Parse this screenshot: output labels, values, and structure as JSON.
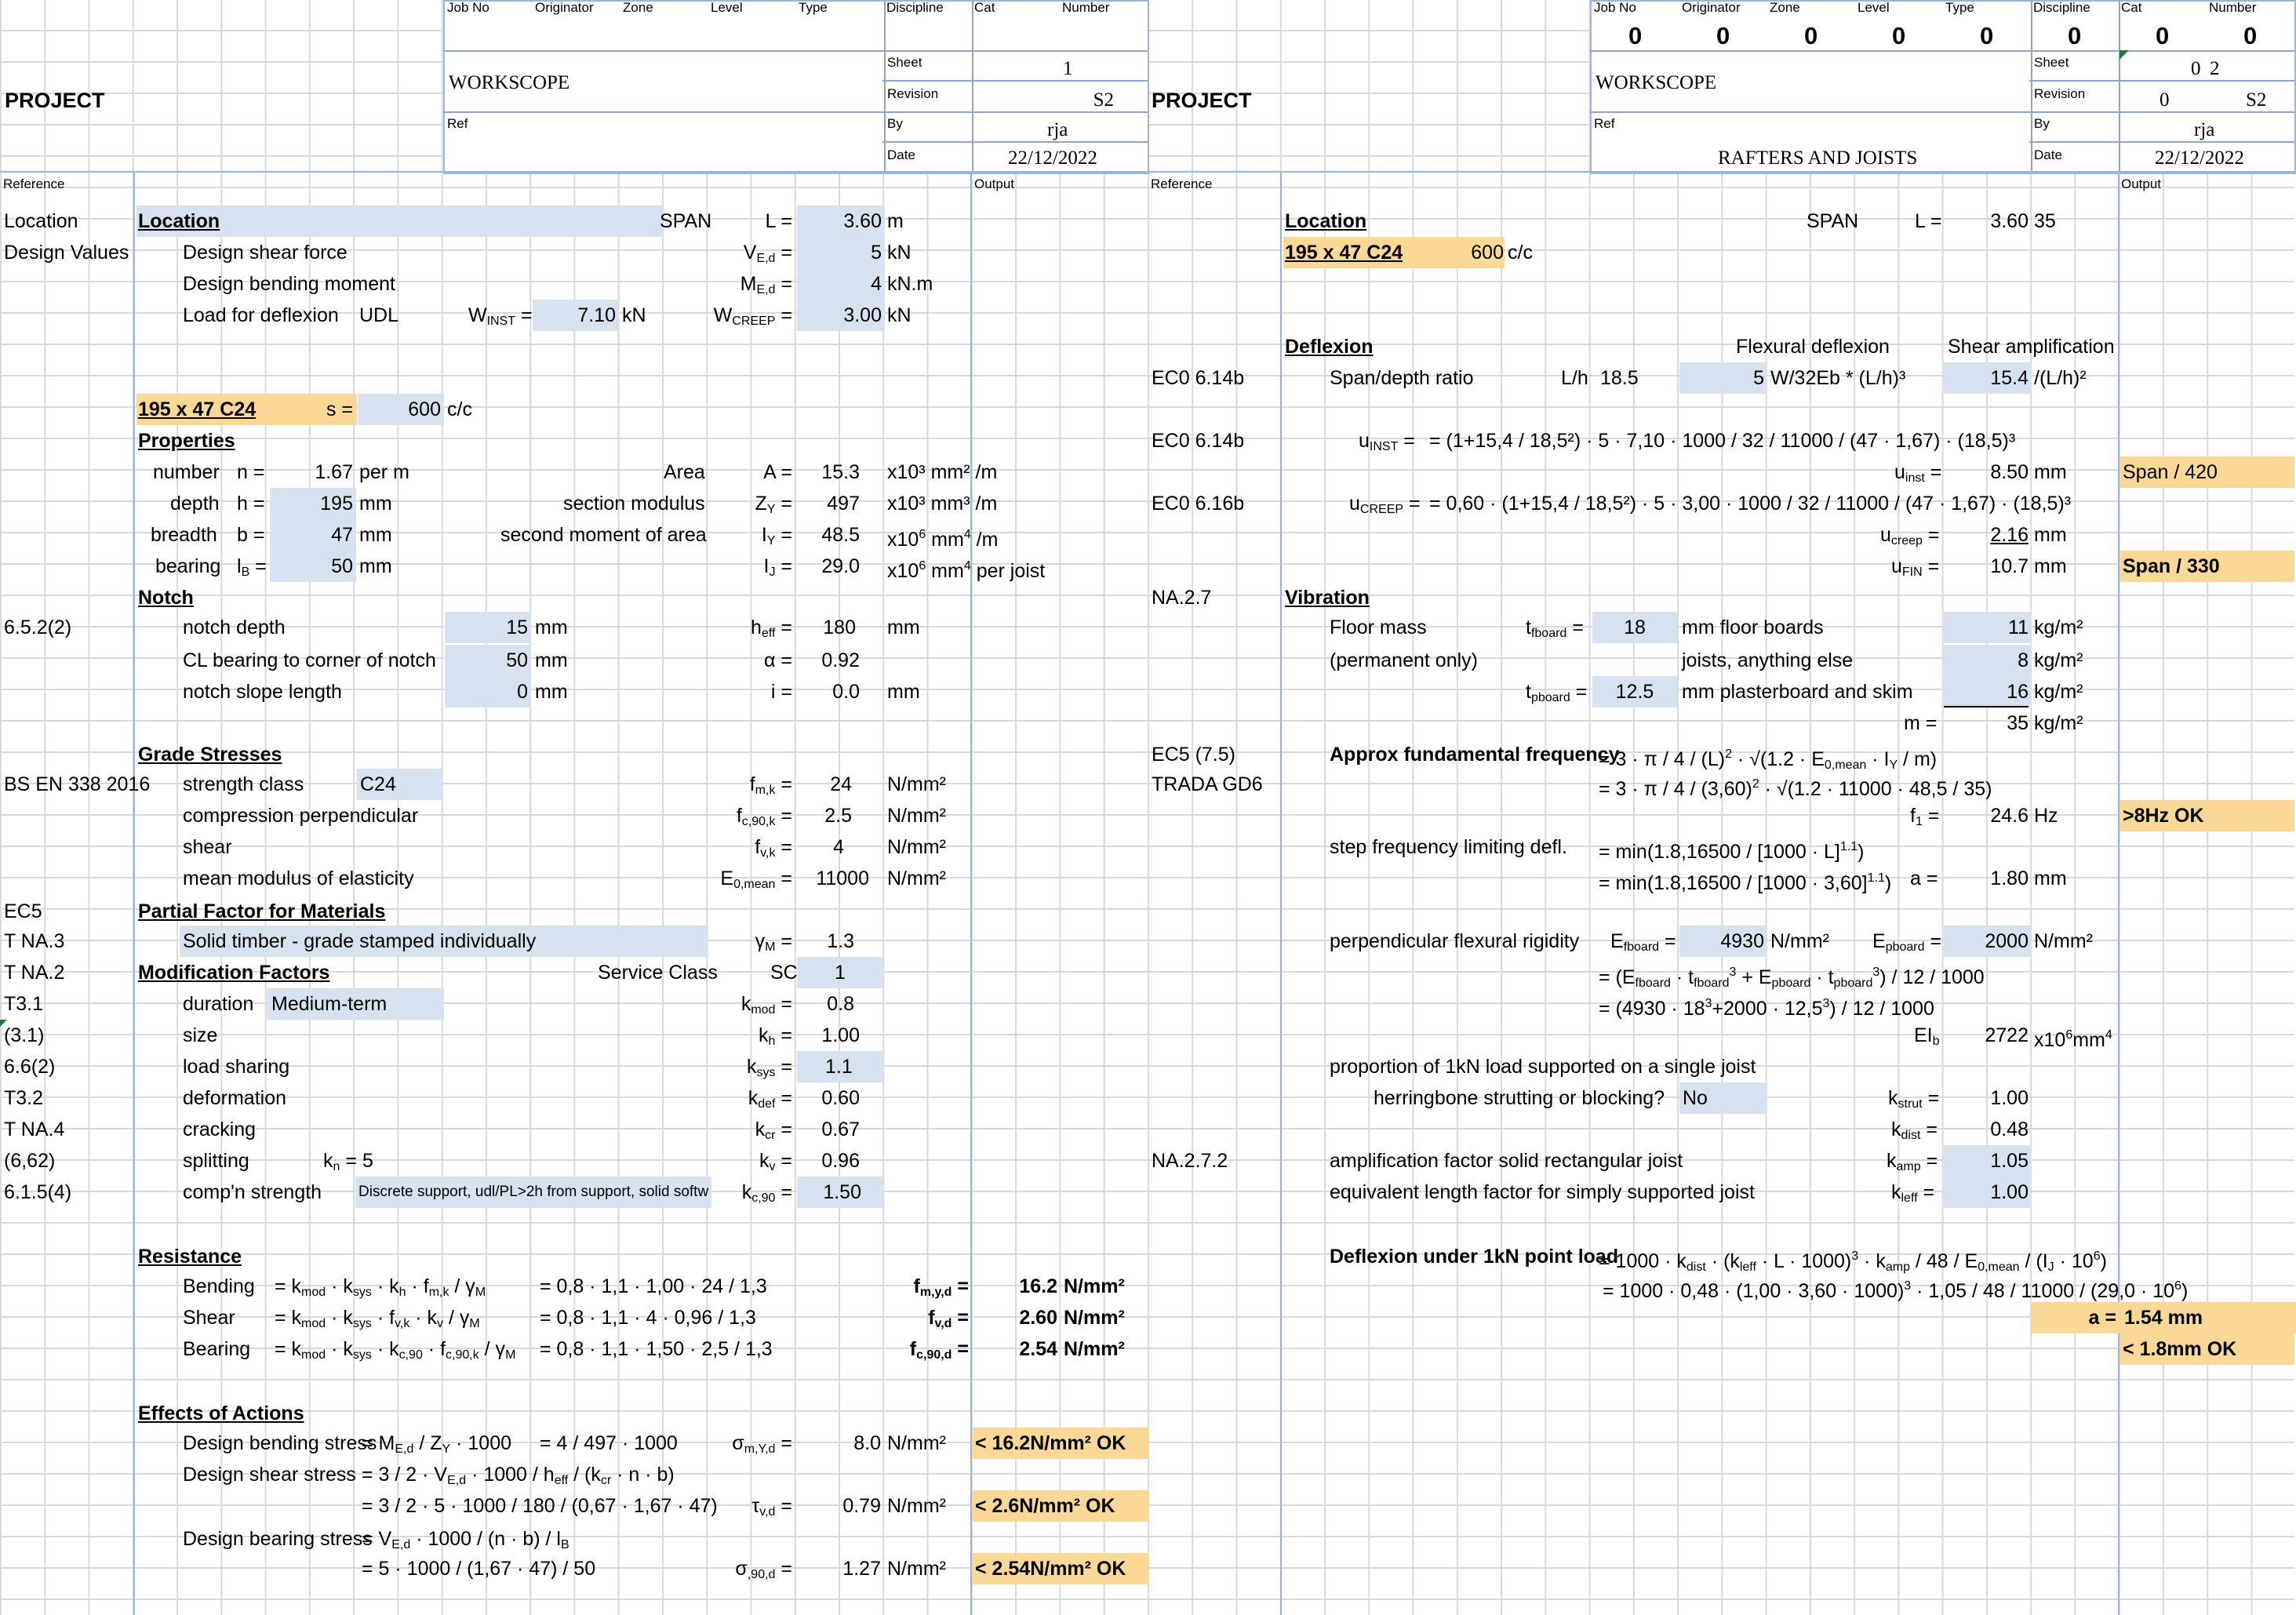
{
  "header": {
    "field_labels": [
      "Job No",
      "Originator",
      "Zone",
      "Level",
      "Type",
      "Discipline",
      "Cat",
      "Number"
    ],
    "left_fields": [
      "",
      "",
      "",
      "",
      "",
      "",
      "",
      ""
    ],
    "right_fields": [
      "0",
      "0",
      "0",
      "0",
      "0",
      "0",
      "0",
      "0"
    ],
    "project_label": "PROJECT",
    "workscope_label": "WORKSCOPE",
    "ref_label": "Ref",
    "sheet_label": "Sheet",
    "revision_label": "Revision",
    "by_label": "By",
    "date_label": "Date",
    "left_sheet": "1",
    "left_revision": "S2",
    "left_by": "rja",
    "left_date": "22/12/2022",
    "right_sheet_a": "0",
    "right_sheet_b": "2",
    "right_revision_a": "0",
    "right_revision_b": "S2",
    "right_by": "rja",
    "right_date": "22/12/2022",
    "right_ref_value": "RAFTERS AND JOISTS",
    "reference_label": "Reference",
    "output_label": "Output"
  },
  "left": {
    "location_ref": "Location",
    "location": "Location",
    "span": "SPAN",
    "L_label": "L =",
    "L": "3.60",
    "L_unit": "m",
    "design_values": "Design Values",
    "shear_force": "Design shear force",
    "shear_value": "5",
    "shear_unit": "kN",
    "bending_moment": "Design bending moment",
    "moment_value": "4",
    "moment_unit": "kN.m",
    "load_deflexion": "Load for deflexion",
    "udl": "UDL",
    "winst": "7.10",
    "wcreep": "3.00",
    "kN": "kN",
    "section": "195 x 47 C24",
    "s_label": "s =",
    "s": "600",
    "cc": "c/c",
    "properties": "Properties",
    "number": "number",
    "n_label": "n =",
    "n": "1.67",
    "per_m": "per m",
    "area": "Area",
    "A_label": "A =",
    "A": "15.3",
    "depth": "depth",
    "h_label": "h =",
    "h": "195",
    "mm": "mm",
    "section_modulus": "section modulus",
    "Z": "497",
    "breadth": "breadth",
    "b_label": "b =",
    "b": "47",
    "second_moment": "second moment of area",
    "Iy": "48.5",
    "bearing": "bearing",
    "Ib": "50",
    "Ij": "29.0",
    "per_joist": "per joist",
    "notch": "Notch",
    "notch_ref": "6.5.2(2)",
    "notch_depth": "notch depth",
    "notch_depth_v": "15",
    "heff": "180",
    "cl_bearing": "CL bearing to corner of notch",
    "cl_bearing_v": "50",
    "alpha": "0.92",
    "slope_len": "notch slope length",
    "slope_len_v": "0",
    "i": "0.0",
    "grade": "Grade Stresses",
    "bs": "BS EN 338 2016",
    "strength_class": "strength class",
    "c24": "C24",
    "fmk": "24",
    "comp_perp": "compression perpendicular",
    "fc90k": "2.5",
    "shear": "shear",
    "fvk": "4",
    "mean_mod": "mean modulus of elasticity",
    "E0": "11000",
    "nmm2": "N/mm²",
    "ec5": "EC5",
    "partial": "Partial Factor for Materials",
    "tna3": "T NA.3",
    "solid": "Solid timber - grade stamped individually",
    "gammaM": "1.3",
    "tna2": "T NA.2",
    "mod": "Modification Factors",
    "service": "Service Class",
    "SC": "SC",
    "sc": "1",
    "t31": "T3.1",
    "duration": "duration",
    "medium": "Medium-term",
    "kmod": "0.8",
    "r31": "(3.1)",
    "size": "size",
    "kh": "1.00",
    "r662": "6.6(2)",
    "load_sharing": "load sharing",
    "ksys": "1.1",
    "t32": "T3.2",
    "deformation": "deformation",
    "kdef": "0.60",
    "tna4": "T NA.4",
    "cracking": "cracking",
    "kcr": "0.67",
    "r662b": "(6,62)",
    "splitting": "splitting",
    "kn": "5",
    "kv": "0.96",
    "r6154": "6.1.5(4)",
    "compn": "comp'n strength",
    "discrete": "Discrete support, udl/PL>2h from support, solid softw",
    "kc90": "1.50",
    "resistance": "Resistance",
    "bending": "Bending",
    "bending_eq2": "= 0,8 · 1,1 · 1,00 · 24 / 1,3",
    "fmyd": "16.2",
    "shear_r": "Shear",
    "shear_eq2": "= 0,8 · 1,1 · 4 · 0,96 / 1,3",
    "fvd": "2.60",
    "bearing_r": "Bearing",
    "bearing_eq2": "= 0,8 · 1,1 · 1,50 · 2,5 / 1,3",
    "fc90d": "2.54",
    "effects": "Effects of Actions",
    "dbs": "Design bending stress",
    "dbs_eq2": "= 4 / 497 · 1000",
    "sigma_m": "8.0",
    "ok1": "< 16.2N/mm²  OK",
    "dss": "Design shear stress",
    "dss_eq2": "= 3 / 2 · 5 · 1000 / 180 / (0,67 · 1,67 · 47)",
    "tau": "0.79",
    "ok2": "< 2.6N/mm²  OK",
    "dbrs": "Design bearing stress",
    "dbrs_eq2": "= 5 · 1000 / (1,67 · 47) / 50",
    "sigma90": "1.27",
    "ok3": "< 2.54N/mm²  OK"
  },
  "right": {
    "location": "Location",
    "span": "SPAN",
    "L_label": "L =",
    "L": "3.60",
    "m": "35",
    "section": "195 x 47 C24",
    "s": "600",
    "cc": "c/c",
    "deflexion": "Deflexion",
    "flexural": "Flexural deflexion",
    "shear_amp": "Shear amplification",
    "e614b": "EC0 6.14b",
    "span_depth": "Span/depth ratio",
    "lh": "L/h",
    "lh_v": "18.5",
    "five": "5",
    "w32": "W/32Eb * (L/h)³",
    "amp": "15.4",
    "amp_unit": "/(L/h)²",
    "uinst_eq": "= (1+15,4 / 18,5²) · 5 · 7,10 · 1000 / 32 / 11000 / (47 · 1,67) · (18,5)³",
    "uinst": "8.50",
    "mm": "mm",
    "span420": "Span / 420",
    "e616b": "EC0 6.16b",
    "ucreep_eq": "= 0,60 · (1+15,4 / 18,5²) · 5 · 3,00 · 1000 / 32 / 11000 / (47 · 1,67) · (18,5)³",
    "ucreep": "2.16",
    "ufin": "10.7",
    "span330": "Span / 330",
    "na27": "NA.2.7",
    "vibration": "Vibration",
    "floor_mass": "Floor mass",
    "tfboard": "18",
    "floor_boards": "mm floor boards",
    "fm1": "11",
    "kgm2": "kg/m²",
    "permanent": "(permanent only)",
    "joists": "joists, anything else",
    "fm2": "8",
    "tpboard": "12.5",
    "plaster": "mm plasterboard and skim",
    "fm3": "16",
    "m_label": "m =",
    "ec5_75": "EC5 (7.5)",
    "approx": "Approx fundamental frequency",
    "f_eq1": "= 3 · π / 4 / (L)² · √(1.2 · E₀,mean · Iᵧ / m)",
    "trada": "TRADA GD6",
    "f_eq2": "= 3 · π / 4 / (3,60)² · √(1.2 · 11000 · 48,5 / 35)",
    "f1_label": "f₁ =",
    "f1": "24.6",
    "hz": "Hz",
    "ok8": ">8Hz OK",
    "step": "step frequency limiting defl.",
    "step_eq1": "= min(1.8,16500 / [1000 · L]¹·¹)",
    "step_eq2": "= min(1.8,16500 / [1000 · 3,60]¹·¹)",
    "a_label": "a =",
    "a": "1.80",
    "perp": "perpendicular flexural rigidity",
    "Ef": "4930",
    "Ep": "2000",
    "ei_eq1": "= (Efboard · tfboard³ + Epboard · tpboard³) / 12 / 1000",
    "ei_eq2": "= (4930 · 18³+2000 · 12,5³) / 12 / 1000",
    "EIb": "2722",
    "proportion": "proportion of 1kN load supported on a single joist",
    "herring": "herringbone strutting or blocking?",
    "no": "No",
    "kstrut": "1.00",
    "kdist": "0.48",
    "na272": "NA.2.7.2",
    "ampf": "amplification factor  solid rectangular joist",
    "kamp": "1.05",
    "eqlen": "equivalent length factor for simply supported joist",
    "kleff": "1.00",
    "defl1kn": "Deflexion under 1kN point load",
    "d_eq1": "= 1000 · kdist · (kleff · L · 1000)³ · kamp / 48 / E0,mean / (Ij · 10⁶)",
    "d_eq2": "= 1000 · 0,48 · (1,00 · 3,60 · 1000)³ · 1,05 / 48 / 11000 / (29,0 · 10⁶)",
    "a2": "1.54 mm",
    "ok18": "< 1.8mm OK"
  }
}
